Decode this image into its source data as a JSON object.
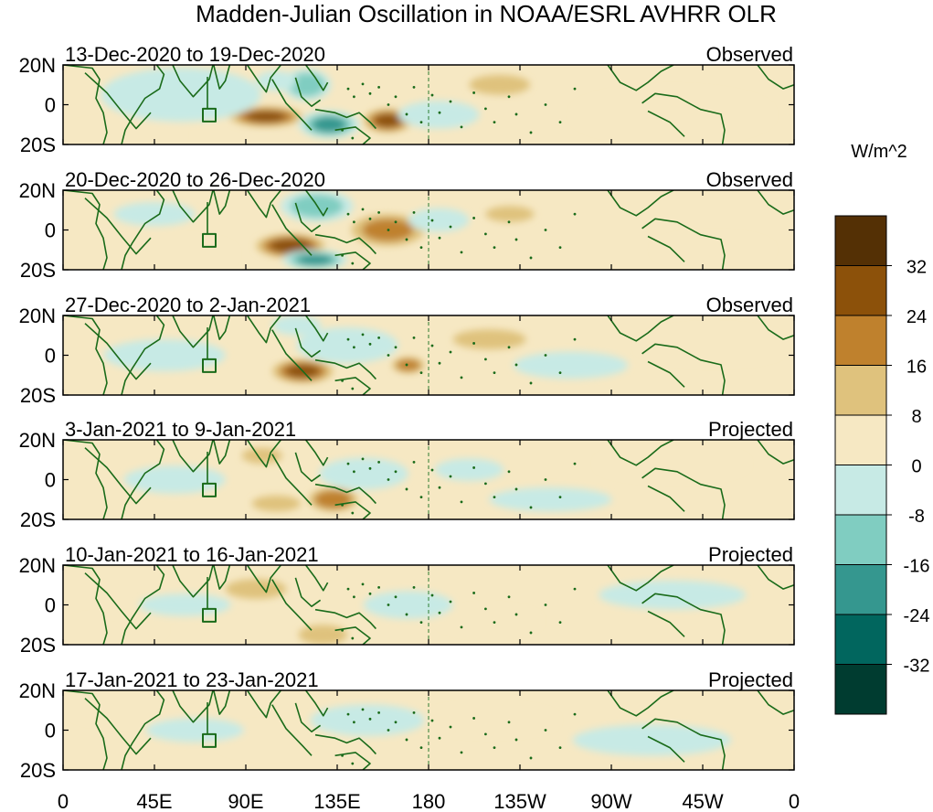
{
  "chart_data": {
    "type": "heatmap",
    "title": "Madden-Julian Oscillation in NOAA/ESRL AVHRR OLR",
    "units": "W/m^2",
    "y_ticks": [
      "20N",
      "0",
      "20S"
    ],
    "x_ticks": [
      "0",
      "45E",
      "90E",
      "135E",
      "180",
      "135W",
      "90W",
      "45W",
      "0"
    ],
    "ylim_lat": [
      -20,
      20
    ],
    "xlim_lon": [
      0,
      360
    ],
    "colorbar": {
      "levels": [
        32,
        24,
        16,
        8,
        0,
        -8,
        -16,
        -24,
        -32
      ],
      "colors": [
        "#543005",
        "#8c510a",
        "#bf812d",
        "#dfc27d",
        "#f6e8c3",
        "#c7eae5",
        "#80cdc1",
        "#35978f",
        "#01665e",
        "#003c30"
      ]
    },
    "panels": [
      {
        "date_range": "13-Dec-2020 to 19-Dec-2020",
        "status": "Observed",
        "anomalies": [
          {
            "lon": 100,
            "lat": -6,
            "rlon": 18,
            "rlat": 5,
            "value": 24
          },
          {
            "lon": 160,
            "lat": -8,
            "rlon": 12,
            "rlat": 6,
            "value": 24
          },
          {
            "lon": 131,
            "lat": -10,
            "rlon": 15,
            "rlat": 7,
            "value": -24
          },
          {
            "lon": 120,
            "lat": 10,
            "rlon": 12,
            "rlat": 8,
            "value": -20
          },
          {
            "lon": 105,
            "lat": 12,
            "rlon": 10,
            "rlat": 5,
            "value": -12
          },
          {
            "lon": 58,
            "lat": 5,
            "rlon": 35,
            "rlat": 12,
            "value": -6
          },
          {
            "lon": 185,
            "lat": -5,
            "rlon": 20,
            "rlat": 7,
            "value": -10
          },
          {
            "lon": 215,
            "lat": 10,
            "rlon": 15,
            "rlat": 5,
            "value": 12
          },
          {
            "lon": 30,
            "lat": -15,
            "rlon": 25,
            "rlat": 6,
            "value": 6
          },
          {
            "lon": 300,
            "lat": -5,
            "rlon": 40,
            "rlat": 10,
            "value": 5
          }
        ]
      },
      {
        "date_range": "20-Dec-2020 to 26-Dec-2020",
        "status": "Observed",
        "anomalies": [
          {
            "lon": 112,
            "lat": -8,
            "rlon": 17,
            "rlat": 6,
            "value": 28
          },
          {
            "lon": 160,
            "lat": 0,
            "rlon": 18,
            "rlat": 8,
            "value": 16
          },
          {
            "lon": 124,
            "lat": -15,
            "rlon": 16,
            "rlat": 5,
            "value": -24
          },
          {
            "lon": 125,
            "lat": 12,
            "rlon": 18,
            "rlat": 8,
            "value": -18
          },
          {
            "lon": 45,
            "lat": 8,
            "rlon": 20,
            "rlat": 6,
            "value": -10
          },
          {
            "lon": 220,
            "lat": 8,
            "rlon": 12,
            "rlat": 4,
            "value": 12
          },
          {
            "lon": 185,
            "lat": 5,
            "rlon": 15,
            "rlat": 6,
            "value": -8
          },
          {
            "lon": 320,
            "lat": -10,
            "rlon": 25,
            "rlat": 6,
            "value": 6
          },
          {
            "lon": 60,
            "lat": -12,
            "rlon": 20,
            "rlat": 6,
            "value": 5
          }
        ]
      },
      {
        "date_range": "27-Dec-2020 to 2-Jan-2021",
        "status": "Observed",
        "anomalies": [
          {
            "lon": 118,
            "lat": -8,
            "rlon": 15,
            "rlat": 6,
            "value": 24
          },
          {
            "lon": 170,
            "lat": -5,
            "rlon": 8,
            "rlat": 4,
            "value": 20
          },
          {
            "lon": 140,
            "lat": 5,
            "rlon": 25,
            "rlat": 9,
            "value": -14
          },
          {
            "lon": 115,
            "lat": 15,
            "rlon": 12,
            "rlat": 5,
            "value": -12
          },
          {
            "lon": 50,
            "lat": 0,
            "rlon": 30,
            "rlat": 8,
            "value": -8
          },
          {
            "lon": 210,
            "lat": 8,
            "rlon": 18,
            "rlat": 5,
            "value": 10
          },
          {
            "lon": 250,
            "lat": -5,
            "rlon": 25,
            "rlat": 6,
            "value": -6
          },
          {
            "lon": 320,
            "lat": 5,
            "rlon": 30,
            "rlat": 7,
            "value": 5
          }
        ]
      },
      {
        "date_range": "3-Jan-2021 to 9-Jan-2021",
        "status": "Projected",
        "anomalies": [
          {
            "lon": 133,
            "lat": -10,
            "rlon": 12,
            "rlat": 6,
            "value": 22
          },
          {
            "lon": 98,
            "lat": 12,
            "rlon": 10,
            "rlat": 4,
            "value": 10
          },
          {
            "lon": 148,
            "lat": 3,
            "rlon": 22,
            "rlat": 8,
            "value": -12
          },
          {
            "lon": 55,
            "lat": 0,
            "rlon": 25,
            "rlat": 7,
            "value": -8
          },
          {
            "lon": 200,
            "lat": 5,
            "rlon": 15,
            "rlat": 5,
            "value": -6
          },
          {
            "lon": 105,
            "lat": -12,
            "rlon": 12,
            "rlat": 4,
            "value": 8
          },
          {
            "lon": 300,
            "lat": 8,
            "rlon": 30,
            "rlat": 6,
            "value": 5
          },
          {
            "lon": 240,
            "lat": -10,
            "rlon": 25,
            "rlat": 5,
            "value": -5
          }
        ]
      },
      {
        "date_range": "10-Jan-2021 to 16-Jan-2021",
        "status": "Projected",
        "anomalies": [
          {
            "lon": 170,
            "lat": 0,
            "rlon": 22,
            "rlat": 7,
            "value": -12
          },
          {
            "lon": 95,
            "lat": 8,
            "rlon": 15,
            "rlat": 5,
            "value": 8
          },
          {
            "lon": 128,
            "lat": -15,
            "rlon": 12,
            "rlat": 5,
            "value": 12
          },
          {
            "lon": 60,
            "lat": 0,
            "rlon": 20,
            "rlat": 5,
            "value": -6
          },
          {
            "lon": 210,
            "lat": -8,
            "rlon": 20,
            "rlat": 5,
            "value": 5
          },
          {
            "lon": 300,
            "lat": 5,
            "rlon": 30,
            "rlat": 6,
            "value": -5
          },
          {
            "lon": 25,
            "lat": -12,
            "rlon": 20,
            "rlat": 5,
            "value": 5
          }
        ]
      },
      {
        "date_range": "17-Jan-2021 to 23-Jan-2021",
        "status": "Projected",
        "anomalies": [
          {
            "lon": 150,
            "lat": 5,
            "rlon": 25,
            "rlat": 7,
            "value": -6
          },
          {
            "lon": 100,
            "lat": -5,
            "rlon": 20,
            "rlat": 6,
            "value": 5
          },
          {
            "lon": 65,
            "lat": 0,
            "rlon": 20,
            "rlat": 5,
            "value": -5
          },
          {
            "lon": 210,
            "lat": 5,
            "rlon": 25,
            "rlat": 5,
            "value": 4
          },
          {
            "lon": 290,
            "lat": -5,
            "rlon": 30,
            "rlat": 6,
            "value": -4
          },
          {
            "lon": 30,
            "lat": 10,
            "rlon": 20,
            "rlat": 5,
            "value": 4
          }
        ]
      }
    ]
  }
}
